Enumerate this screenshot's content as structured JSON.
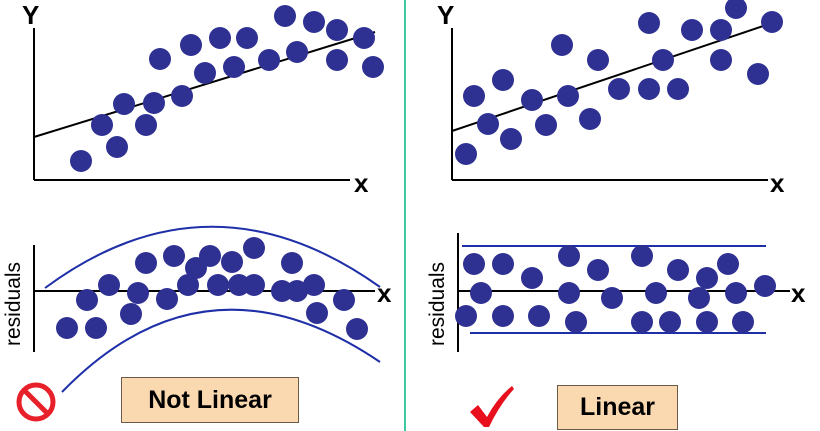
{
  "left_panel": {
    "scatter": {
      "y_label": "Y",
      "x_label": "x"
    },
    "residuals": {
      "y_label": "residuals",
      "x_label": "x"
    },
    "verdict": "Not Linear",
    "verdict_icon": "prohibition-icon"
  },
  "right_panel": {
    "scatter": {
      "y_label": "Y",
      "x_label": "x"
    },
    "residuals": {
      "y_label": "residuals",
      "x_label": "x"
    },
    "verdict": "Linear",
    "verdict_icon": "checkmark-icon"
  },
  "colors": {
    "dot": "#2e3192",
    "band": "#1f2fa8",
    "divider": "#3cc8a0",
    "badge_fill": "#fbd9b0",
    "prohibition": "#e8202a",
    "check": "#e8101c"
  }
}
